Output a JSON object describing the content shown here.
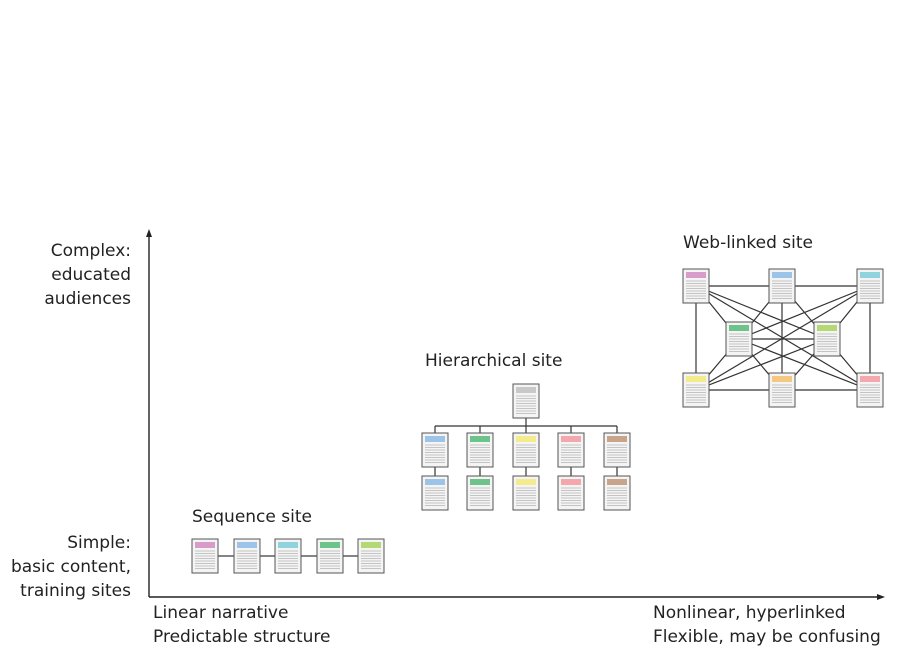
{
  "y_axis": {
    "top_label": [
      "Complex:",
      "educated",
      "audiences"
    ],
    "bottom_label": [
      "Simple:",
      "basic content,",
      "training sites"
    ]
  },
  "x_axis": {
    "left_label": [
      "Linear narrative",
      "Predictable structure"
    ],
    "right_label": [
      "Nonlinear, hyperlinked",
      "Flexible, may be confusing"
    ]
  },
  "sites": {
    "sequence": {
      "title": "Sequence site",
      "page_colors": [
        "#d89ccb",
        "#9cc4e8",
        "#8fd4dc",
        "#6cc48a",
        "#b4d874"
      ]
    },
    "hierarchical": {
      "title": "Hierarchical site",
      "root_color": "#c8c8c8",
      "child_colors": [
        "#9cc4e8",
        "#6cc48a",
        "#f4ec8c",
        "#f4a8ae",
        "#c8a48a"
      ]
    },
    "web": {
      "title": "Web-linked site",
      "top_colors": [
        "#d89ccb",
        "#9cc4e8",
        "#8fd4dc"
      ],
      "middle_colors": [
        "#6cc48a",
        "#b4d874"
      ],
      "bottom_colors": [
        "#f4ec8c",
        "#f4c880",
        "#f4a8ae"
      ]
    }
  }
}
